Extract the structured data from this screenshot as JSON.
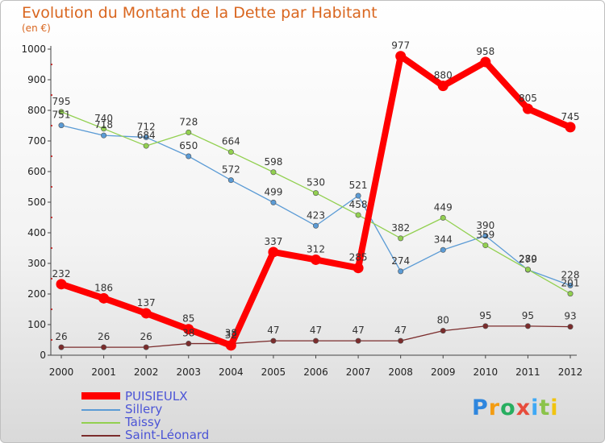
{
  "header": {
    "title": "Evolution du Montant de la Dette par Habitant",
    "unit": "(en €)"
  },
  "logo": {
    "text": "Proxiti"
  },
  "chart_data": {
    "type": "line",
    "title": "Evolution du Montant de la Dette par Habitant",
    "ylabel": "(en €)",
    "xlabel": "",
    "x": [
      "2000",
      "2001",
      "2002",
      "2003",
      "2004",
      "2005",
      "2006",
      "2007",
      "2008",
      "2009",
      "2010",
      "2011",
      "2012"
    ],
    "ylim": [
      0,
      1000
    ],
    "yticks": [
      0,
      100,
      200,
      300,
      400,
      500,
      600,
      700,
      800,
      900,
      1000
    ],
    "grid": false,
    "legend_position": "bottom-left",
    "series": [
      {
        "name": "PUISIEULX",
        "color": "#ff0000",
        "values": [
          232,
          186,
          137,
          85,
          32,
          337,
          312,
          285,
          977,
          880,
          958,
          805,
          745
        ]
      },
      {
        "name": "Sillery",
        "color": "#5b9bd5",
        "values": [
          751,
          718,
          712,
          650,
          572,
          499,
          423,
          521,
          274,
          344,
          390,
          279,
          228
        ]
      },
      {
        "name": "Taissy",
        "color": "#92d050",
        "values": [
          795,
          740,
          684,
          728,
          664,
          598,
          530,
          458,
          382,
          449,
          359,
          280,
          201
        ]
      },
      {
        "name": "Saint-Léonard",
        "color": "#7b2c2c",
        "values": [
          26,
          26,
          26,
          38,
          38,
          47,
          47,
          47,
          47,
          80,
          95,
          95,
          93
        ]
      }
    ]
  }
}
